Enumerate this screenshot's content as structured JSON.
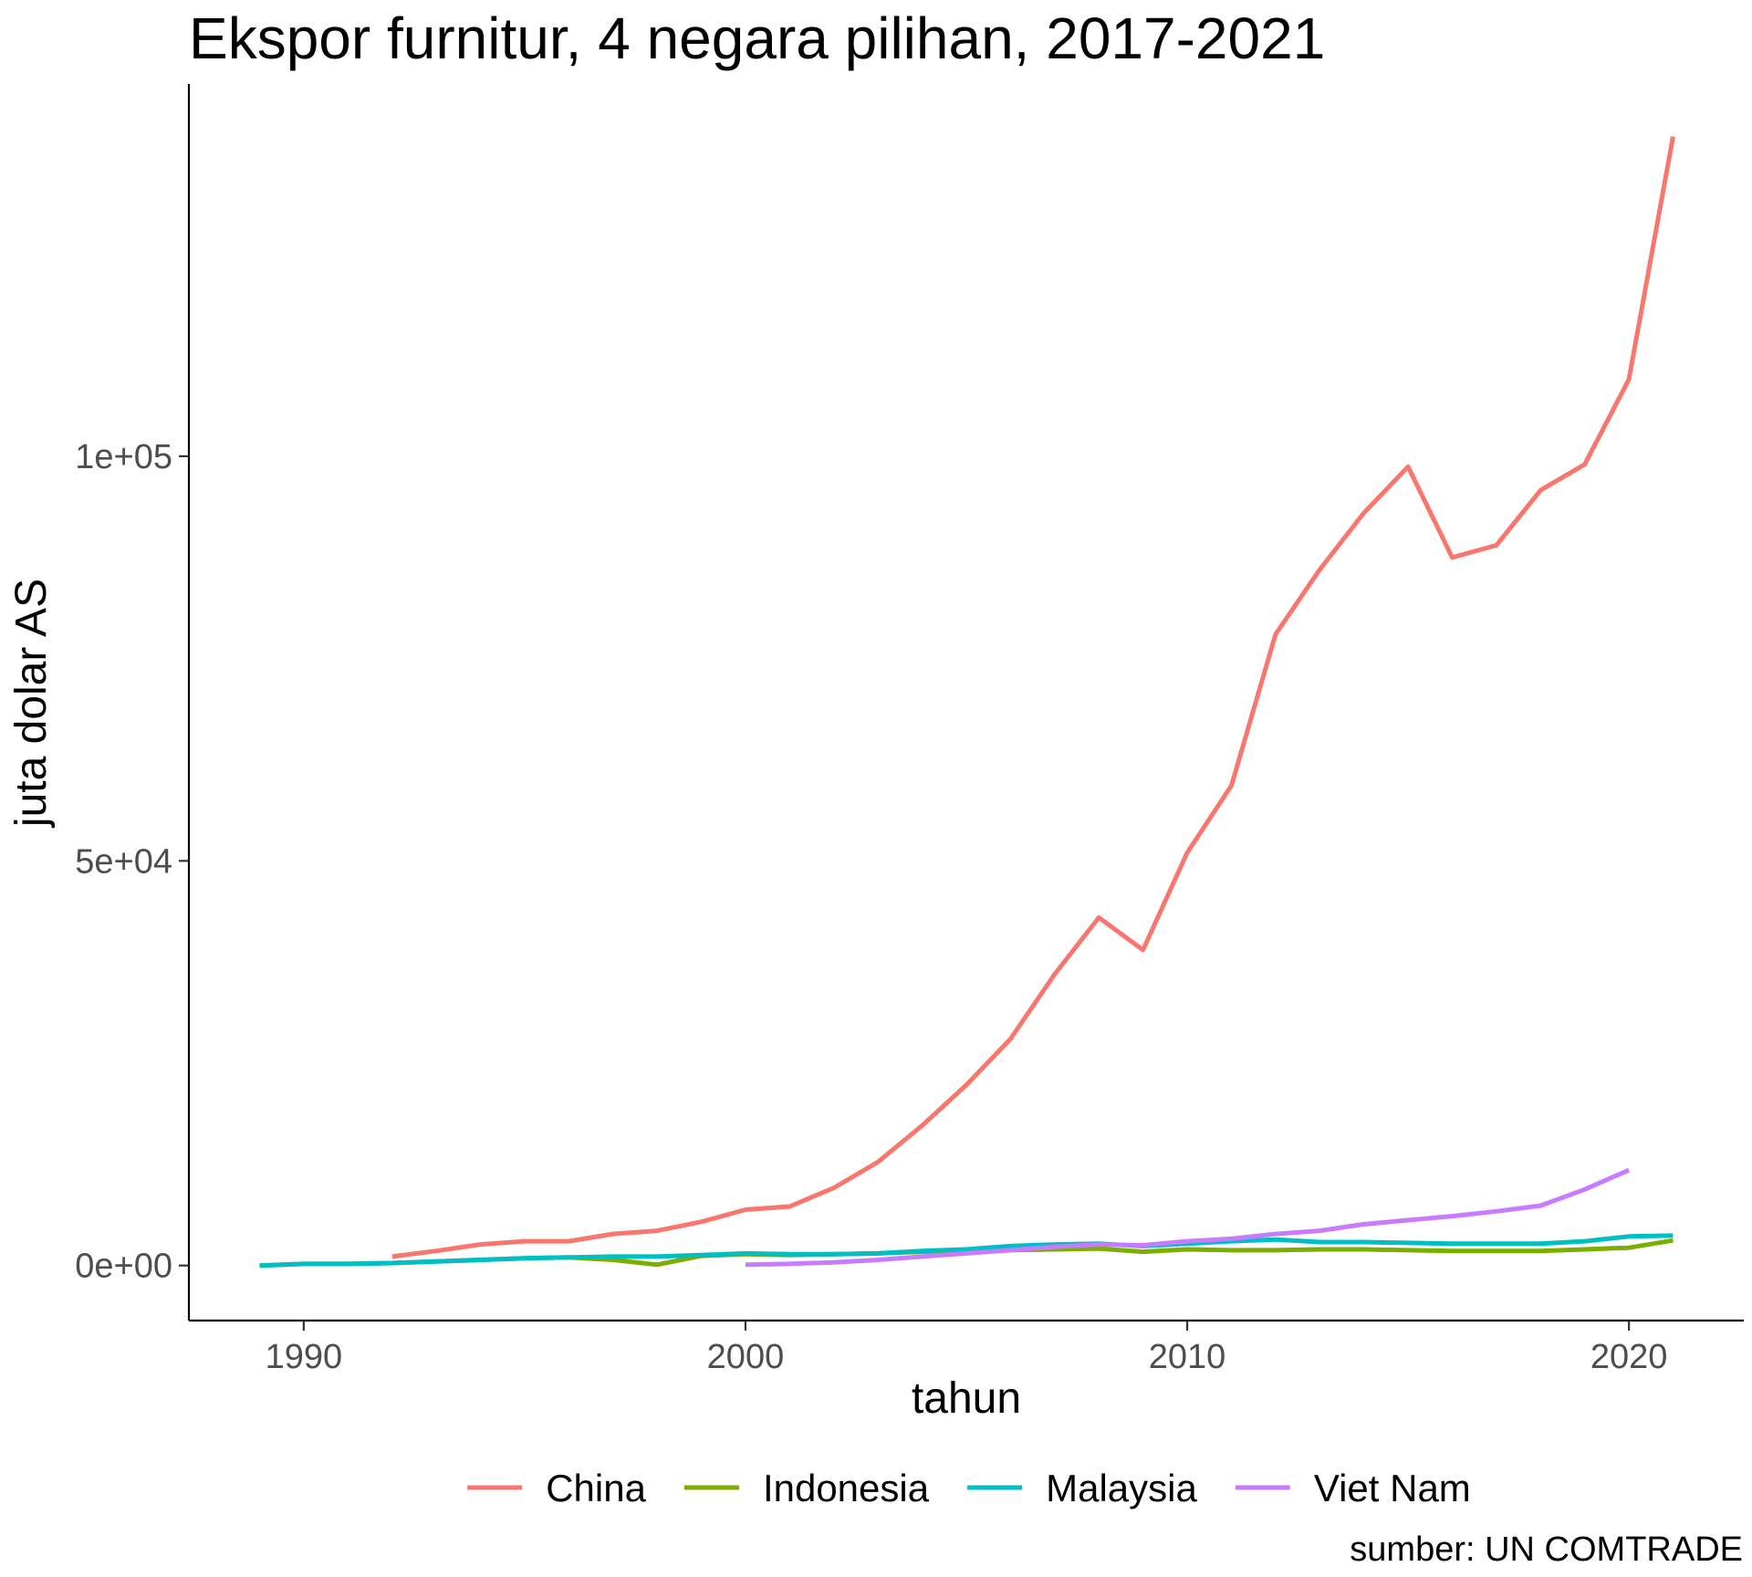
{
  "chart_data": {
    "type": "line",
    "title": "Ekspor furnitur, 4 negara pilihan, 2017-2021",
    "xlabel": "tahun",
    "ylabel": "juta dolar AS",
    "caption": "sumber: UN COMTRADE",
    "xlim": [
      1987.4,
      2022.6
    ],
    "ylim": [
      -6800,
      146000
    ],
    "x_ticks": [
      1990,
      2000,
      2010,
      2020
    ],
    "x_tick_labels": [
      "1990",
      "2000",
      "2010",
      "2020"
    ],
    "y_ticks": [
      0,
      50000,
      100000
    ],
    "y_tick_labels": [
      "0e+00",
      "5e+04",
      "1e+05"
    ],
    "grid": false,
    "legend_position": "bottom",
    "series": [
      {
        "name": "China",
        "color": "#F8766D",
        "x": [
          1992,
          1993,
          1994,
          1995,
          1996,
          1997,
          1998,
          1999,
          2000,
          2001,
          2002,
          2003,
          2004,
          2005,
          2006,
          2007,
          2008,
          2009,
          2010,
          2011,
          2012,
          2013,
          2014,
          2015,
          2016,
          2017,
          2018,
          2019,
          2020,
          2021
        ],
        "y": [
          1100,
          1800,
          2600,
          3000,
          3000,
          3900,
          4300,
          5400,
          6900,
          7300,
          9600,
          12800,
          17300,
          22300,
          28000,
          36000,
          43000,
          39000,
          51000,
          59300,
          78000,
          86000,
          93000,
          98700,
          87500,
          89000,
          95800,
          99000,
          109500,
          139500
        ]
      },
      {
        "name": "Indonesia",
        "color": "#7CAE00",
        "x": [
          1989,
          1990,
          1991,
          1992,
          1993,
          1994,
          1995,
          1996,
          1997,
          1998,
          1999,
          2000,
          2001,
          2002,
          2003,
          2004,
          2005,
          2006,
          2007,
          2008,
          2009,
          2010,
          2011,
          2012,
          2013,
          2014,
          2015,
          2016,
          2017,
          2018,
          2019,
          2020,
          2021
        ],
        "y": [
          0,
          200,
          200,
          300,
          500,
          700,
          900,
          1000,
          700,
          100,
          1200,
          1400,
          1300,
          1400,
          1500,
          1700,
          1800,
          1900,
          2000,
          2100,
          1700,
          2000,
          1900,
          1900,
          2000,
          2000,
          1900,
          1800,
          1800,
          1800,
          2000,
          2200,
          3100
        ]
      },
      {
        "name": "Malaysia",
        "color": "#00BFC4",
        "x": [
          1989,
          1990,
          1991,
          1992,
          1993,
          1994,
          1995,
          1996,
          1997,
          1998,
          1999,
          2000,
          2001,
          2002,
          2003,
          2004,
          2005,
          2006,
          2007,
          2008,
          2009,
          2010,
          2011,
          2012,
          2013,
          2014,
          2015,
          2016,
          2017,
          2018,
          2019,
          2020,
          2021
        ],
        "y": [
          0,
          200,
          200,
          300,
          500,
          700,
          900,
          1000,
          1100,
          1100,
          1300,
          1500,
          1400,
          1400,
          1500,
          1800,
          2000,
          2400,
          2600,
          2700,
          2400,
          2700,
          3000,
          3200,
          2900,
          2900,
          2800,
          2700,
          2700,
          2700,
          3000,
          3600,
          3700
        ]
      },
      {
        "name": "Viet Nam",
        "color": "#C77CFF",
        "x": [
          2000,
          2001,
          2002,
          2003,
          2004,
          2005,
          2006,
          2007,
          2008,
          2009,
          2010,
          2011,
          2012,
          2013,
          2014,
          2015,
          2016,
          2017,
          2018,
          2019,
          2020
        ],
        "y": [
          100,
          200,
          400,
          700,
          1100,
          1500,
          1900,
          2300,
          2600,
          2500,
          3000,
          3300,
          3900,
          4300,
          5100,
          5600,
          6100,
          6700,
          7400,
          9400,
          11800
        ]
      }
    ]
  }
}
